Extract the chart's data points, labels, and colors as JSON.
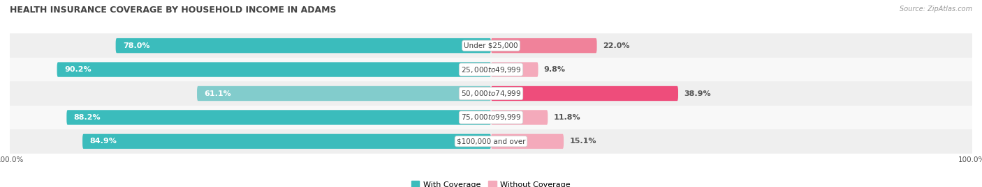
{
  "title": "HEALTH INSURANCE COVERAGE BY HOUSEHOLD INCOME IN ADAMS",
  "source": "Source: ZipAtlas.com",
  "categories": [
    "Under $25,000",
    "$25,000 to $49,999",
    "$50,000 to $74,999",
    "$75,000 to $99,999",
    "$100,000 and over"
  ],
  "with_coverage": [
    78.0,
    90.2,
    61.1,
    88.2,
    84.9
  ],
  "without_coverage": [
    22.0,
    9.8,
    38.9,
    11.8,
    15.1
  ],
  "color_with": [
    "#3BBCBC",
    "#3BBCBC",
    "#82CCCC",
    "#3BBCBC",
    "#3BBCBC"
  ],
  "color_without": [
    "#F0829A",
    "#F4AABB",
    "#EE4D7B",
    "#F4AABB",
    "#F4AABB"
  ],
  "row_bg_even": "#EFEFEF",
  "row_bg_odd": "#F8F8F8",
  "bar_height": 0.62,
  "title_fontsize": 9,
  "label_fontsize": 8,
  "cat_fontsize": 7.5,
  "source_fontsize": 7,
  "legend_label_with": "With Coverage",
  "legend_label_without": "Without Coverage",
  "color_legend_with": "#3BBCBC",
  "color_legend_without": "#F4AABB"
}
